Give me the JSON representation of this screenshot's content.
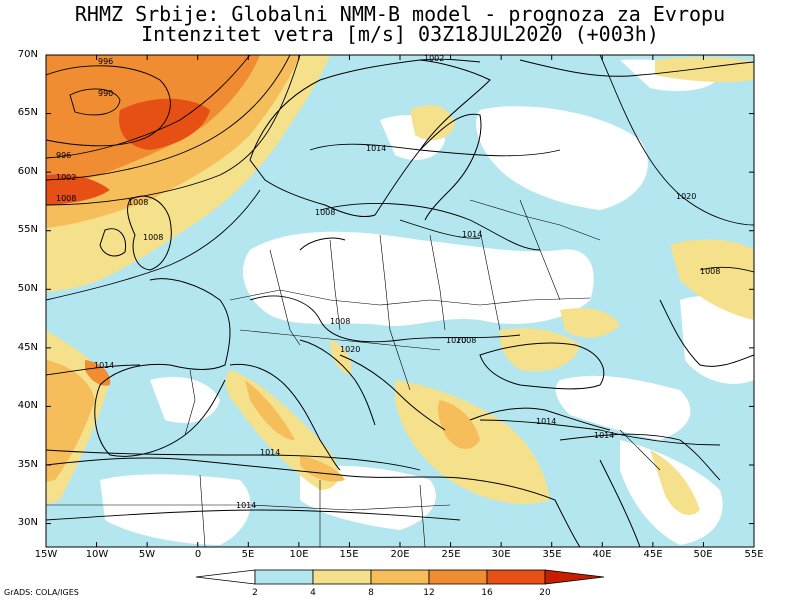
{
  "title": {
    "line1": "RHMZ Srbije: Globalni NMM-B model - prognoza za Evropu",
    "line2": "Intenzitet vetra [m/s] 03Z18JUL2020 (+003h)"
  },
  "map": {
    "lon_range": [
      -15,
      55
    ],
    "lat_range": [
      28,
      70
    ],
    "lat_labels": [
      "70N",
      "65N",
      "60N",
      "55N",
      "50N",
      "45N",
      "40N",
      "35N",
      "30N"
    ],
    "lon_labels": [
      "15W",
      "10W",
      "5W",
      "0",
      "5E",
      "10E",
      "15E",
      "20E",
      "25E",
      "30E",
      "35E",
      "40E",
      "45E",
      "50E",
      "55E"
    ],
    "isobar_labels": [
      "996",
      "990",
      "996",
      "1002",
      "1008",
      "1008",
      "1014",
      "1014",
      "1014",
      "1008",
      "1020",
      "1020",
      "1020",
      "1014",
      "1014",
      "1014",
      "1014",
      "1008",
      "1002",
      "1008",
      "1008",
      "1008"
    ],
    "colors": {
      "calm": "#ffffff",
      "2-4": "#b4e6f0",
      "4-8": "#f5e18c",
      "8-12": "#f5be5a",
      "12-16": "#f08c32",
      "16-20": "#e65014",
      "20+": "#c81e00"
    }
  },
  "colorbar": {
    "labels": [
      "2",
      "4",
      "8",
      "12",
      "16",
      "20"
    ],
    "colors": [
      "#ffffff",
      "#b4e6f0",
      "#f5e18c",
      "#f5be5a",
      "#f08c32",
      "#e65014",
      "#c81e00"
    ]
  },
  "credit": "GrADS: COLA/IGES"
}
